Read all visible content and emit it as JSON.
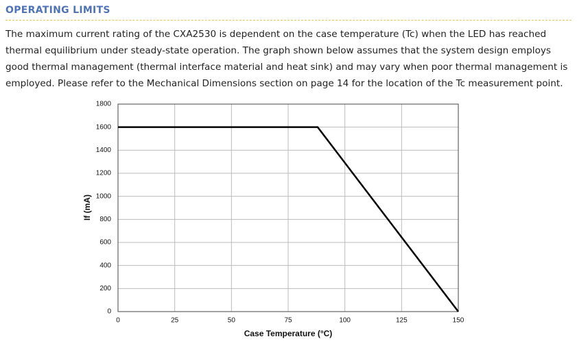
{
  "header": {
    "title": "OPERATING LIMITS"
  },
  "body": {
    "text": "The maximum current rating of the CXA2530 is dependent on the case temperature (Tc) when the LED has reached thermal equilibrium under steady-state operation. The graph shown below assumes that the system design employs good thermal management (thermal interface material and heat sink) and may vary when poor thermal management is employed. Please refer to the Mechanical Dimensions section on page 14 for the location of the Tc measurement point."
  },
  "chart_data": {
    "type": "line",
    "x": [
      0,
      88,
      150
    ],
    "series": [
      {
        "name": "If",
        "color": "#000000",
        "values": [
          1600,
          1600,
          0
        ]
      }
    ],
    "xlabel": "Case Temperature (°C)",
    "ylabel": "If (mA)",
    "xlim": [
      0,
      150
    ],
    "xticks": [
      0,
      25,
      50,
      75,
      100,
      125,
      150
    ],
    "ylim": [
      0,
      1800
    ],
    "yticks": [
      0,
      200,
      400,
      600,
      800,
      1000,
      1200,
      1400,
      1600,
      1800
    ],
    "grid": true
  }
}
